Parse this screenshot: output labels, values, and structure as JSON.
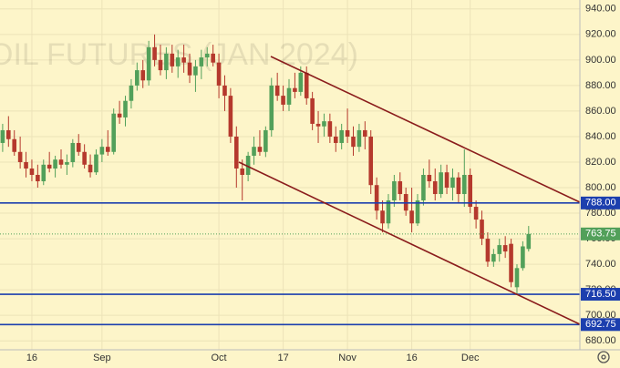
{
  "chart_data": {
    "type": "candlestick",
    "title": "OIL FUTURES (JAN 2024)",
    "categories": [
      null,
      null,
      null,
      null,
      null,
      "16",
      null,
      null,
      null,
      null,
      null,
      null,
      null,
      null,
      null,
      null,
      null,
      "Sep",
      null,
      null,
      null,
      null,
      null,
      null,
      null,
      null,
      null,
      null,
      null,
      null,
      null,
      null,
      null,
      null,
      null,
      null,
      null,
      "Oct",
      null,
      null,
      null,
      null,
      null,
      null,
      null,
      null,
      null,
      null,
      "17",
      null,
      null,
      null,
      null,
      null,
      null,
      null,
      null,
      null,
      null,
      "Nov",
      null,
      null,
      null,
      null,
      null,
      null,
      null,
      null,
      null,
      null,
      "16",
      null,
      null,
      null,
      null,
      null,
      null,
      null,
      null,
      null,
      "Dec",
      null,
      null,
      null,
      null,
      null,
      null,
      null,
      null,
      null,
      null
    ],
    "open": [
      835,
      845,
      838,
      828,
      820,
      815,
      810,
      805,
      818,
      815,
      822,
      818,
      820,
      835,
      828,
      818,
      812,
      826,
      832,
      828,
      858,
      855,
      868,
      880,
      892,
      884,
      910,
      900,
      892,
      905,
      895,
      902,
      898,
      888,
      895,
      902,
      905,
      898,
      880,
      872,
      840,
      815,
      810,
      825,
      832,
      828,
      845,
      880,
      872,
      865,
      878,
      875,
      890,
      870,
      850,
      848,
      852,
      840,
      835,
      845,
      840,
      832,
      845,
      840,
      802,
      782,
      772,
      790,
      805,
      795,
      782,
      772,
      790,
      810,
      805,
      795,
      812,
      800,
      808,
      795,
      810,
      785,
      775,
      760,
      742,
      748,
      755,
      756,
      722,
      737,
      752
    ],
    "high": [
      850,
      856,
      845,
      840,
      828,
      822,
      818,
      822,
      828,
      825,
      830,
      826,
      838,
      842,
      834,
      826,
      830,
      838,
      845,
      862,
      868,
      872,
      885,
      898,
      900,
      915,
      920,
      912,
      910,
      912,
      908,
      912,
      905,
      900,
      908,
      910,
      912,
      905,
      888,
      878,
      848,
      822,
      828,
      840,
      845,
      848,
      886,
      890,
      880,
      885,
      890,
      895,
      895,
      875,
      860,
      858,
      858,
      848,
      850,
      862,
      848,
      850,
      852,
      845,
      808,
      790,
      795,
      810,
      812,
      800,
      800,
      795,
      815,
      822,
      815,
      818,
      818,
      815,
      812,
      830,
      815,
      790,
      782,
      765,
      752,
      760,
      762,
      760,
      740,
      758,
      770
    ],
    "low": [
      828,
      832,
      825,
      815,
      808,
      805,
      800,
      802,
      812,
      808,
      815,
      810,
      816,
      825,
      815,
      808,
      810,
      820,
      825,
      826,
      850,
      848,
      862,
      876,
      878,
      880,
      895,
      888,
      885,
      890,
      886,
      890,
      882,
      875,
      885,
      895,
      895,
      870,
      860,
      835,
      800,
      790,
      805,
      818,
      825,
      824,
      840,
      868,
      860,
      860,
      870,
      872,
      865,
      845,
      835,
      840,
      835,
      828,
      830,
      835,
      825,
      828,
      830,
      795,
      775,
      765,
      768,
      785,
      790,
      778,
      765,
      770,
      786,
      800,
      790,
      792,
      795,
      790,
      788,
      785,
      780,
      768,
      755,
      738,
      738,
      742,
      745,
      722,
      716.5,
      735,
      750
    ],
    "close": [
      845,
      838,
      828,
      820,
      815,
      810,
      805,
      818,
      815,
      822,
      818,
      820,
      835,
      828,
      818,
      812,
      826,
      832,
      828,
      858,
      855,
      868,
      880,
      892,
      884,
      910,
      900,
      892,
      905,
      895,
      902,
      898,
      888,
      895,
      902,
      905,
      898,
      880,
      872,
      840,
      815,
      810,
      825,
      832,
      828,
      845,
      880,
      872,
      865,
      878,
      875,
      890,
      870,
      850,
      848,
      852,
      840,
      835,
      845,
      840,
      832,
      845,
      840,
      802,
      782,
      772,
      790,
      805,
      795,
      782,
      772,
      790,
      810,
      805,
      795,
      812,
      800,
      808,
      795,
      810,
      785,
      775,
      760,
      742,
      748,
      755,
      750,
      726,
      737,
      754,
      763.75
    ],
    "up_color": "#52a05a",
    "down_color": "#b5392d",
    "ylim": [
      673,
      947
    ],
    "yticks": [
      {
        "value": 680,
        "label": "680.00"
      },
      {
        "value": 700,
        "label": "700.00"
      },
      {
        "value": 720,
        "label": "720.00"
      },
      {
        "value": 740,
        "label": "740.00"
      },
      {
        "value": 760,
        "label": "760.00"
      },
      {
        "value": 780,
        "label": "780.00"
      },
      {
        "value": 800,
        "label": "800.00"
      },
      {
        "value": 820,
        "label": "820.00"
      },
      {
        "value": 840,
        "label": "840.00"
      },
      {
        "value": 860,
        "label": "860.00"
      },
      {
        "value": 880,
        "label": "880.00"
      },
      {
        "value": 900,
        "label": "900.00"
      },
      {
        "value": 920,
        "label": "920.00"
      },
      {
        "value": 940,
        "label": "940.00"
      }
    ],
    "grid": true,
    "levels": [
      {
        "value": 788,
        "label": "788.00"
      },
      {
        "value": 716.5,
        "label": "716.50"
      },
      {
        "value": 692.75,
        "label": "692.75"
      }
    ],
    "level_color": "#1c3fae",
    "last_price": {
      "value": 763.75,
      "label": "763.75"
    }
  }
}
